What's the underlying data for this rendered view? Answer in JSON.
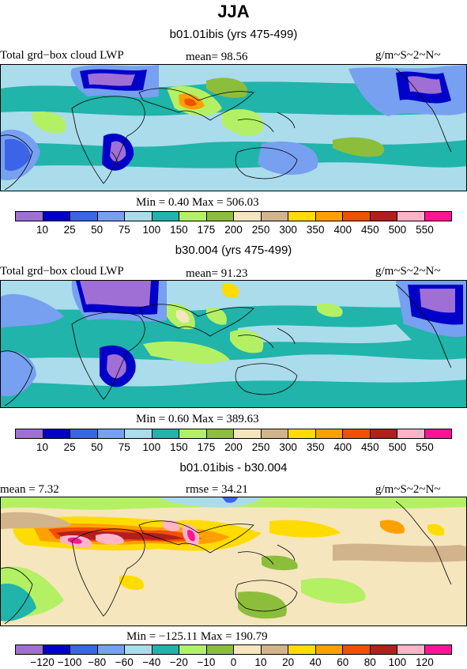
{
  "title": "JJA",
  "panels": [
    {
      "subtitle": "b01.01ibis (yrs 475-499)",
      "left_label": "Total grd−box cloud LWP",
      "center_label": "mean=   98.56",
      "units": "g/m~S~2~N~",
      "minmax": "Min =    0.40  Max = 506.03",
      "colorbar": {
        "colors": [
          "#9f6fd6",
          "#0000c8",
          "#3c64e6",
          "#78a0f0",
          "#aadcec",
          "#20b4aa",
          "#b4f064",
          "#8cbe3c",
          "#f5e6be",
          "#d2b48c",
          "#ffdc00",
          "#ffa000",
          "#f05000",
          "#b41e1e",
          "#ffb4c8",
          "#ff1493"
        ],
        "ticks": [
          "10",
          "25",
          "50",
          "75",
          "100",
          "150",
          "175",
          "200",
          "250",
          "300",
          "350",
          "400",
          "450",
          "500",
          "550"
        ]
      }
    },
    {
      "subtitle": "b30.004 (yrs 475-499)",
      "left_label": "Total grd−box cloud LWP",
      "center_label": "mean=   91.23",
      "units": "g/m~S~2~N~",
      "minmax": "Min =    0.60  Max = 389.63",
      "colorbar": {
        "colors": [
          "#9f6fd6",
          "#0000c8",
          "#3c64e6",
          "#78a0f0",
          "#aadcec",
          "#20b4aa",
          "#b4f064",
          "#8cbe3c",
          "#f5e6be",
          "#d2b48c",
          "#ffdc00",
          "#ffa000",
          "#f05000",
          "#b41e1e",
          "#ffb4c8",
          "#ff1493"
        ],
        "ticks": [
          "10",
          "25",
          "50",
          "75",
          "100",
          "150",
          "175",
          "200",
          "250",
          "300",
          "350",
          "400",
          "450",
          "500",
          "550"
        ]
      }
    },
    {
      "subtitle": "b01.01ibis - b30.004",
      "left_label": "mean =    7.32",
      "center_label": "rmse =   34.21",
      "units": "g/m~S~2~N~",
      "minmax": "Min = −125.11  Max = 190.79",
      "colorbar": {
        "colors": [
          "#9f6fd6",
          "#0000c8",
          "#3c64e6",
          "#78a0f0",
          "#aadcec",
          "#20b4aa",
          "#b4f064",
          "#8cbe3c",
          "#f5e6be",
          "#d2b48c",
          "#ffdc00",
          "#ffa000",
          "#f05000",
          "#b41e1e",
          "#ffb4c8",
          "#ff1493"
        ],
        "ticks": [
          "−120",
          "−100",
          "−80",
          "−60",
          "−40",
          "−20",
          "−10",
          "0",
          "10",
          "20",
          "40",
          "60",
          "80",
          "100",
          "120"
        ]
      }
    }
  ]
}
